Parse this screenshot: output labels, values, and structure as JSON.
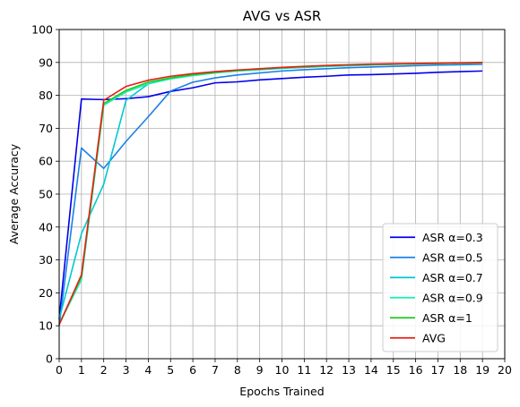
{
  "chart_data": {
    "type": "line",
    "title": "AVG vs ASR",
    "xlabel": "Epochs Trained",
    "ylabel": "Average Accuracy",
    "xlim": [
      0,
      20
    ],
    "ylim": [
      0,
      100
    ],
    "x_ticks": [
      "0",
      "1",
      "2",
      "3",
      "4",
      "5",
      "6",
      "7",
      "8",
      "9",
      "10",
      "11",
      "12",
      "13",
      "14",
      "15",
      "16",
      "17",
      "18",
      "19",
      "20"
    ],
    "y_ticks": [
      "0",
      "10",
      "20",
      "30",
      "40",
      "50",
      "60",
      "70",
      "80",
      "90",
      "100"
    ],
    "grid": true,
    "legend_position": "lower-right",
    "x": [
      0,
      1,
      2,
      3,
      4,
      5,
      6,
      7,
      8,
      9,
      10,
      11,
      12,
      13,
      14,
      15,
      16,
      17,
      18,
      19
    ],
    "series": [
      {
        "name": "ASR α=0.3",
        "color": "#0000ee",
        "values": [
          12,
          78.9,
          78.7,
          79.0,
          79.6,
          81.2,
          82.3,
          83.8,
          84.1,
          84.7,
          85.1,
          85.5,
          85.8,
          86.2,
          86.3,
          86.5,
          86.7,
          87.0,
          87.2,
          87.4
        ]
      },
      {
        "name": "ASR α=0.5",
        "color": "#1a80e6",
        "values": [
          10,
          64,
          57.8,
          66,
          73.5,
          81.3,
          84.0,
          85.3,
          86.2,
          86.8,
          87.4,
          87.8,
          88.1,
          88.4,
          88.6,
          88.8,
          89.0,
          89.2,
          89.3,
          89.4
        ]
      },
      {
        "name": "ASR α=0.7",
        "color": "#00c8d2",
        "values": [
          12,
          38,
          53,
          78.5,
          83.5,
          85.2,
          86.2,
          86.9,
          87.4,
          87.8,
          88.2,
          88.5,
          88.8,
          89.0,
          89.2,
          89.4,
          89.6,
          89.7,
          89.8,
          89.9
        ]
      },
      {
        "name": "ASR α=0.9",
        "color": "#14f0b4",
        "values": [
          10.5,
          24,
          77,
          81,
          83.5,
          85.0,
          86.0,
          86.8,
          87.4,
          87.9,
          88.3,
          88.6,
          88.9,
          89.1,
          89.3,
          89.5,
          89.6,
          89.7,
          89.8,
          89.9
        ]
      },
      {
        "name": "ASR α=1",
        "color": "#1ec81e",
        "values": [
          10.5,
          25,
          77.5,
          81.5,
          84.0,
          85.3,
          86.3,
          87.0,
          87.6,
          88.0,
          88.4,
          88.7,
          89.0,
          89.2,
          89.4,
          89.5,
          89.6,
          89.7,
          89.8,
          89.9
        ]
      },
      {
        "name": "AVG",
        "color": "#e61e14",
        "values": [
          10.3,
          25.5,
          78.5,
          82.7,
          84.6,
          85.8,
          86.6,
          87.2,
          87.7,
          88.1,
          88.5,
          88.8,
          89.1,
          89.3,
          89.5,
          89.6,
          89.7,
          89.8,
          89.9,
          90.0
        ]
      }
    ]
  }
}
